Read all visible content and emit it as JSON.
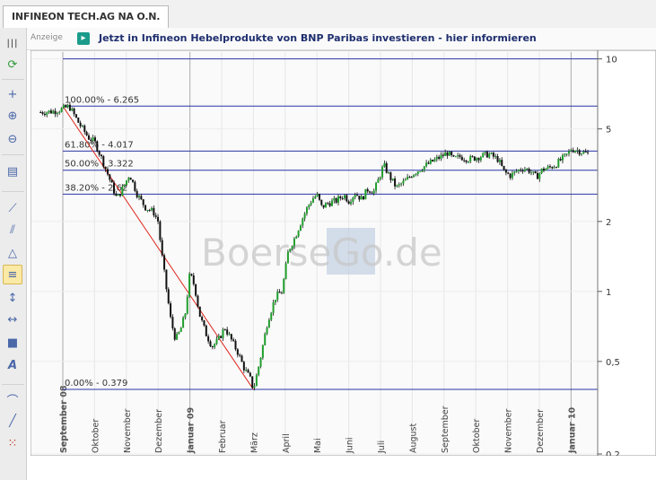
{
  "tab": {
    "title": "INFINEON TECH.AG NA O.N."
  },
  "ad": {
    "label": "Anzeige",
    "text": "Jetzt in Infineon Hebelprodukte von BNP Paribas investieren - hier informieren"
  },
  "toolbar": {
    "tools": [
      {
        "name": "columns-icon",
        "glyph": "|||"
      },
      {
        "name": "refresh-icon",
        "glyph": "⟳"
      },
      {
        "name": "crosshair-icon",
        "glyph": "+"
      },
      {
        "name": "zoom-in-icon",
        "glyph": "⊕"
      },
      {
        "name": "zoom-out-icon",
        "glyph": "⊖"
      },
      {
        "name": "save-icon",
        "glyph": "▤"
      },
      {
        "name": "trendline-icon",
        "glyph": "⟋"
      },
      {
        "name": "channel-icon",
        "glyph": "⫽"
      },
      {
        "name": "triangle-icon",
        "glyph": "△"
      },
      {
        "name": "fibonacci-icon",
        "glyph": "≡"
      },
      {
        "name": "vertical-line-icon",
        "glyph": "↕"
      },
      {
        "name": "horizontal-line-icon",
        "glyph": "↔"
      },
      {
        "name": "rectangle-icon",
        "glyph": "■"
      },
      {
        "name": "text-icon",
        "glyph": "A"
      },
      {
        "name": "arc-icon",
        "glyph": "⌒"
      },
      {
        "name": "line-icon",
        "glyph": "╱"
      },
      {
        "name": "grid-icon",
        "glyph": "⁙"
      }
    ],
    "active_tool": "fibonacci-icon"
  },
  "chart_data": {
    "type": "candlestick",
    "watermark": "BoerseGo.de",
    "y_scale": "log",
    "ylim": [
      0.2,
      10.8
    ],
    "y_ticks": [
      "10",
      "5",
      "2",
      "1",
      "0,5",
      "0,2"
    ],
    "y_tick_values": [
      10,
      5,
      2,
      1,
      0.5,
      0.2
    ],
    "x_ticks": [
      {
        "label": "September 08",
        "bold": true
      },
      {
        "label": "Oktober",
        "bold": false
      },
      {
        "label": "November",
        "bold": false
      },
      {
        "label": "Dezember",
        "bold": false
      },
      {
        "label": "Januar 09",
        "bold": true
      },
      {
        "label": "Februar",
        "bold": false
      },
      {
        "label": "März",
        "bold": false
      },
      {
        "label": "April",
        "bold": false
      },
      {
        "label": "Mai",
        "bold": false
      },
      {
        "label": "Juni",
        "bold": false
      },
      {
        "label": "Juli",
        "bold": false
      },
      {
        "label": "August",
        "bold": false
      },
      {
        "label": "September",
        "bold": false
      },
      {
        "label": "Oktober",
        "bold": false
      },
      {
        "label": "November",
        "bold": false
      },
      {
        "label": "Dezember",
        "bold": false
      },
      {
        "label": "Januar 10",
        "bold": true
      }
    ],
    "fib_levels": [
      {
        "label": "100.00% - 6.265",
        "value": 6.265
      },
      {
        "label": "61.80% - 4.017",
        "value": 4.017
      },
      {
        "label": "50.00% - 3.322",
        "value": 3.322
      },
      {
        "label": "38.20% - 2.62",
        "value": 2.62
      },
      {
        "label": "0.00% - 0.379",
        "value": 0.379
      }
    ],
    "top_line_value": 10,
    "trend_line": {
      "from_month": "September 08",
      "from": 6.265,
      "to_month": "März",
      "to": 0.379
    },
    "price_path": [
      [
        -0.7,
        5.9
      ],
      [
        -0.3,
        5.95
      ],
      [
        0.0,
        6.1
      ],
      [
        0.2,
        6.26
      ],
      [
        0.5,
        5.3
      ],
      [
        0.8,
        4.6
      ],
      [
        1.0,
        4.4
      ],
      [
        1.2,
        3.8
      ],
      [
        1.45,
        3.1
      ],
      [
        1.7,
        2.5
      ],
      [
        1.9,
        2.8
      ],
      [
        2.1,
        3.2
      ],
      [
        2.35,
        2.6
      ],
      [
        2.6,
        2.3
      ],
      [
        2.85,
        2.2
      ],
      [
        3.0,
        2.0
      ],
      [
        3.1,
        1.5
      ],
      [
        3.25,
        1.05
      ],
      [
        3.4,
        0.75
      ],
      [
        3.55,
        0.62
      ],
      [
        3.7,
        0.68
      ],
      [
        3.85,
        0.8
      ],
      [
        4.0,
        1.2
      ],
      [
        4.15,
        1.05
      ],
      [
        4.3,
        0.8
      ],
      [
        4.5,
        0.66
      ],
      [
        4.7,
        0.58
      ],
      [
        4.9,
        0.62
      ],
      [
        5.1,
        0.7
      ],
      [
        5.3,
        0.62
      ],
      [
        5.5,
        0.55
      ],
      [
        5.7,
        0.47
      ],
      [
        5.9,
        0.42
      ],
      [
        6.0,
        0.379
      ],
      [
        6.2,
        0.5
      ],
      [
        6.45,
        0.75
      ],
      [
        6.7,
        0.95
      ],
      [
        6.9,
        1.0
      ],
      [
        7.1,
        1.5
      ],
      [
        7.3,
        1.7
      ],
      [
        7.5,
        2.0
      ],
      [
        7.7,
        2.3
      ],
      [
        7.85,
        2.5
      ],
      [
        8.0,
        2.6
      ],
      [
        8.15,
        2.3
      ],
      [
        8.35,
        2.4
      ],
      [
        8.6,
        2.45
      ],
      [
        8.85,
        2.6
      ],
      [
        9.0,
        2.45
      ],
      [
        9.2,
        2.65
      ],
      [
        9.4,
        2.5
      ],
      [
        9.6,
        2.75
      ],
      [
        9.8,
        2.7
      ],
      [
        10.0,
        3.2
      ],
      [
        10.1,
        3.5
      ],
      [
        10.3,
        3.1
      ],
      [
        10.5,
        2.8
      ],
      [
        10.8,
        3.0
      ],
      [
        11.0,
        3.2
      ],
      [
        11.3,
        3.4
      ],
      [
        11.6,
        3.6
      ],
      [
        11.9,
        3.8
      ],
      [
        12.1,
        3.95
      ],
      [
        12.3,
        3.7
      ],
      [
        12.5,
        3.8
      ],
      [
        12.8,
        3.7
      ],
      [
        13.1,
        3.8
      ],
      [
        13.4,
        3.9
      ],
      [
        13.7,
        3.7
      ],
      [
        13.9,
        3.25
      ],
      [
        14.1,
        3.15
      ],
      [
        14.3,
        3.3
      ],
      [
        14.5,
        3.4
      ],
      [
        14.7,
        3.3
      ],
      [
        14.9,
        3.1
      ],
      [
        15.1,
        3.35
      ],
      [
        15.3,
        3.4
      ],
      [
        15.5,
        3.5
      ],
      [
        15.7,
        3.7
      ],
      [
        15.9,
        3.9
      ],
      [
        16.0,
        4.1
      ],
      [
        16.2,
        4.05
      ],
      [
        16.4,
        3.95
      ],
      [
        16.55,
        3.9
      ]
    ]
  }
}
